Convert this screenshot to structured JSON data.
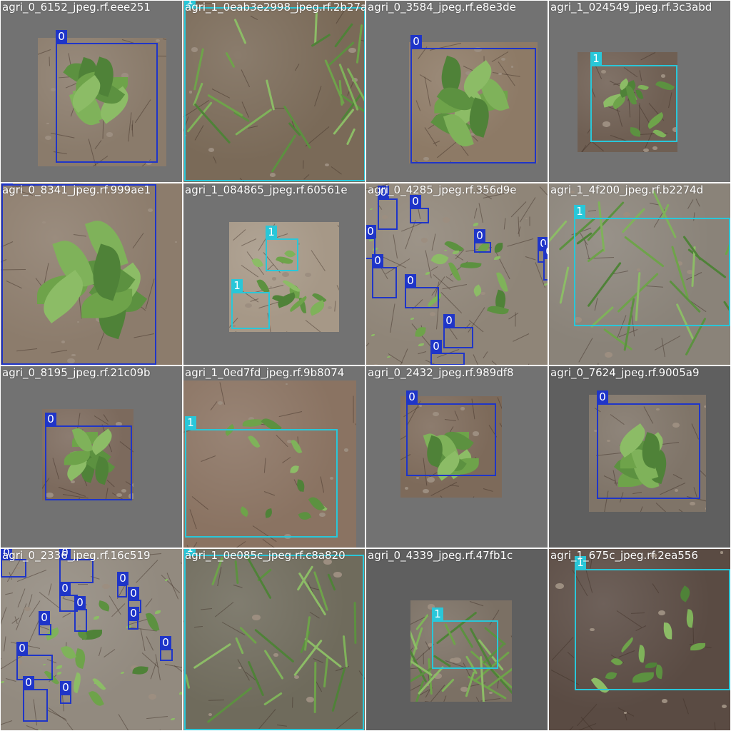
{
  "colors": {
    "class_0": "#1f35c8",
    "class_1": "#29c7d9",
    "padding": "#727272"
  },
  "tiles": [
    {
      "filename": "agri_0_6152_jpeg.rf.eee251",
      "boxes": [
        {
          "label": "0"
        }
      ]
    },
    {
      "filename": "agri_1_0eab3e2998_jpeg.rf.2b27a",
      "boxes": [
        {
          "label": "1"
        }
      ]
    },
    {
      "filename": "agri_0_3584_jpeg.rf.e8e3de",
      "boxes": [
        {
          "label": "0"
        }
      ]
    },
    {
      "filename": "agri_1_024549_jpeg.rf.3c3abd",
      "boxes": [
        {
          "label": "1"
        }
      ]
    },
    {
      "filename": "agri_0_8341_jpeg.rf.999ae1",
      "boxes": [
        {
          "label": "0"
        }
      ]
    },
    {
      "filename": "agri_1_084865_jpeg.rf.60561e",
      "boxes": [
        {
          "label": "1"
        },
        {
          "label": "1"
        }
      ]
    },
    {
      "filename": "agri_0_4285_jpeg.rf.356d9e",
      "boxes": [
        {
          "label": "0"
        },
        {
          "label": "0"
        },
        {
          "label": "0"
        },
        {
          "label": "0"
        },
        {
          "label": "0"
        },
        {
          "label": "0"
        },
        {
          "label": "0"
        },
        {
          "label": "0"
        },
        {
          "label": "0"
        },
        {
          "label": "0"
        }
      ]
    },
    {
      "filename": "agri_1_4f200_jpeg.rf.b2274d",
      "boxes": [
        {
          "label": "1"
        }
      ]
    },
    {
      "filename": "agri_0_8195_jpeg.rf.21c09b",
      "boxes": [
        {
          "label": "0"
        }
      ]
    },
    {
      "filename": "agri_1_0ed7fd_jpeg.rf.9b8074",
      "boxes": [
        {
          "label": "1"
        }
      ]
    },
    {
      "filename": "agri_0_2432_jpeg.rf.989df8",
      "boxes": [
        {
          "label": "0"
        }
      ]
    },
    {
      "filename": "agri_0_7624_jpeg.rf.9005a9",
      "boxes": [
        {
          "label": "0"
        }
      ]
    },
    {
      "filename": "agri_0_2336_jpeg.rf.16c519",
      "boxes": [
        {
          "label": "0"
        },
        {
          "label": "0"
        },
        {
          "label": "0"
        },
        {
          "label": "0"
        },
        {
          "label": "0"
        },
        {
          "label": "0"
        },
        {
          "label": "0"
        },
        {
          "label": "0"
        },
        {
          "label": "0"
        },
        {
          "label": "0"
        },
        {
          "label": "0"
        },
        {
          "label": "0"
        }
      ]
    },
    {
      "filename": "agri_1_0e085c_jpeg.rf.c8a820",
      "boxes": [
        {
          "label": "1"
        }
      ]
    },
    {
      "filename": "agri_0_4339_jpeg.rf.47fb1c",
      "boxes": [
        {
          "label": "1"
        }
      ]
    },
    {
      "filename": "agri_1_675c_jpeg.rf.2ea556",
      "boxes": [
        {
          "label": "1"
        }
      ]
    }
  ]
}
